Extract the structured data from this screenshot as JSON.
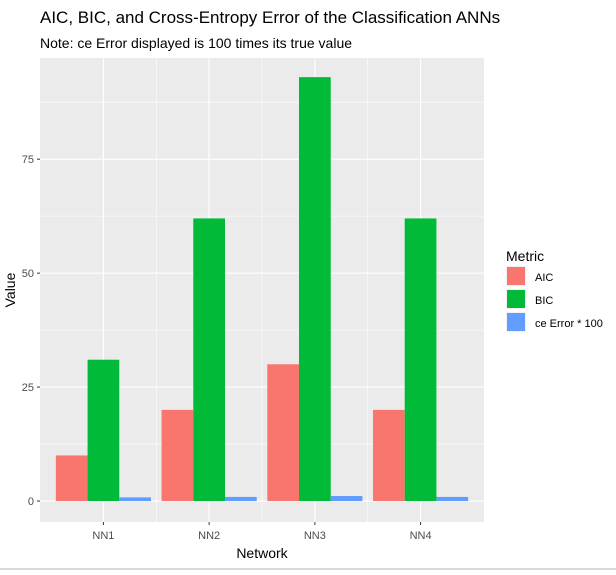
{
  "chart_data": {
    "type": "bar",
    "title": "AIC, BIC, and Cross-Entropy Error of the Classification ANNs",
    "subtitle": "Note: ce Error displayed is 100 times its true value",
    "xlabel": "Network",
    "ylabel": "Value",
    "categories": [
      "NN1",
      "NN2",
      "NN3",
      "NN4"
    ],
    "y_ticks": [
      0,
      25,
      50,
      75
    ],
    "ylim": [
      -4.6,
      97.2
    ],
    "grid": true,
    "legend_title": "Metric",
    "legend_position": "right",
    "series": [
      {
        "name": "AIC",
        "color": "#F8766D",
        "values": [
          10,
          20,
          30,
          20
        ]
      },
      {
        "name": "BIC",
        "color": "#00BA38",
        "values": [
          31,
          62,
          93,
          62
        ]
      },
      {
        "name": "ce Error * 100",
        "color": "#619CFF",
        "values": [
          0.8,
          0.9,
          1.1,
          0.9
        ]
      }
    ]
  }
}
